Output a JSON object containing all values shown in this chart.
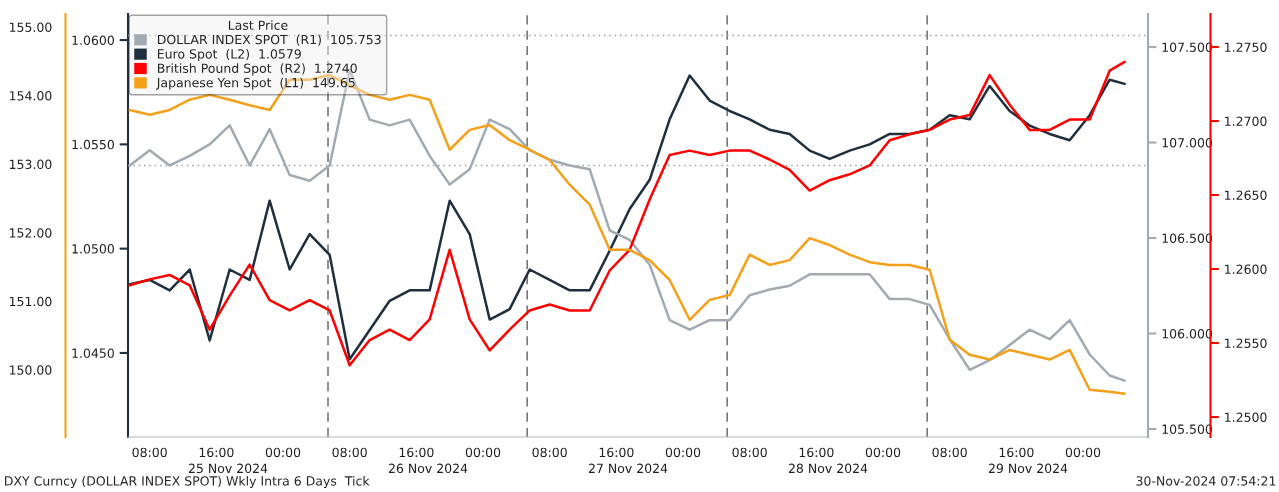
{
  "chart_data": [
    {
      "type": "line",
      "legend_title": "Last Price",
      "legend": "top left",
      "x": [
        "2024-11-25T05:36",
        "2024-11-25T08:00",
        "2024-11-25T10:24",
        "2024-11-25T12:48",
        "2024-11-25T15:12",
        "2024-11-25T17:36",
        "2024-11-25T20:00",
        "2024-11-25T22:24",
        "2024-11-26T00:48",
        "2024-11-26T03:12",
        "2024-11-26T05:36",
        "2024-11-26T08:00",
        "2024-11-26T10:24",
        "2024-11-26T12:48",
        "2024-11-26T15:12",
        "2024-11-26T17:36",
        "2024-11-26T20:00",
        "2024-11-26T22:24",
        "2024-11-27T00:48",
        "2024-11-27T03:12",
        "2024-11-27T05:36",
        "2024-11-27T08:00",
        "2024-11-27T10:24",
        "2024-11-27T12:48",
        "2024-11-27T15:12",
        "2024-11-27T17:36",
        "2024-11-27T20:00",
        "2024-11-27T22:24",
        "2024-11-28T00:48",
        "2024-11-28T03:12",
        "2024-11-28T05:36",
        "2024-11-28T08:00",
        "2024-11-28T10:24",
        "2024-11-28T12:48",
        "2024-11-28T15:12",
        "2024-11-28T17:36",
        "2024-11-28T20:00",
        "2024-11-28T22:24",
        "2024-11-29T00:48",
        "2024-11-29T03:12",
        "2024-11-29T05:36",
        "2024-11-29T08:00",
        "2024-11-29T10:24",
        "2024-11-29T12:48",
        "2024-11-29T15:12",
        "2024-11-29T17:36",
        "2024-11-29T20:00",
        "2024-11-29T22:24",
        "2024-11-30T00:48",
        "2024-11-30T03:12",
        "2024-11-30T05:00"
      ],
      "series": [
        {
          "name": "DOLLAR INDEX SPOT  (R1)  105.753",
          "color": "#a2aab2",
          "axis": "y2",
          "values": [
            106.88,
            106.96,
            106.88,
            106.93,
            106.99,
            107.09,
            106.88,
            107.07,
            106.83,
            106.8,
            106.88,
            107.38,
            107.12,
            107.09,
            107.12,
            106.93,
            106.78,
            106.86,
            107.12,
            107.07,
            106.96,
            106.91,
            106.88,
            106.86,
            106.54,
            106.49,
            106.36,
            106.07,
            106.02,
            106.07,
            106.07,
            106.2,
            106.23,
            106.25,
            106.31,
            106.31,
            106.31,
            106.31,
            106.18,
            106.18,
            106.15,
            105.97,
            105.81,
            105.86,
            105.94,
            106.02,
            105.97,
            106.07,
            105.89,
            105.78,
            105.753
          ]
        },
        {
          "name": "Euro Spot  (L2)  1.0579",
          "color": "#1f2f3d",
          "values": [
            1.0483,
            1.0485,
            1.048,
            1.049,
            1.0456,
            1.049,
            1.0485,
            1.0523,
            1.049,
            1.0507,
            1.0497,
            1.0447,
            1.0461,
            1.0475,
            1.048,
            1.048,
            1.0523,
            1.0507,
            1.0466,
            1.0471,
            1.049,
            1.0485,
            1.048,
            1.048,
            1.0499,
            1.0519,
            1.0533,
            1.0562,
            1.0583,
            1.0571,
            1.0566,
            1.0562,
            1.0557,
            1.0555,
            1.0547,
            1.0543,
            1.0547,
            1.055,
            1.0555,
            1.0555,
            1.0557,
            1.0564,
            1.0562,
            1.0578,
            1.0566,
            1.0559,
            1.0555,
            1.0552,
            1.0564,
            1.0581,
            1.0579
          ]
        },
        {
          "name": "British Pound Spot  (R2)  1.2740",
          "color": "#ff0000",
          "axis": "y3",
          "values": [
            1.2589,
            1.2593,
            1.2596,
            1.2589,
            1.2559,
            1.2582,
            1.2603,
            1.2579,
            1.2572,
            1.2579,
            1.2572,
            1.2535,
            1.2552,
            1.2559,
            1.2552,
            1.2566,
            1.2613,
            1.2566,
            1.2545,
            1.2559,
            1.2572,
            1.2576,
            1.2572,
            1.2572,
            1.2599,
            1.2613,
            1.2647,
            1.2677,
            1.268,
            1.2677,
            1.268,
            1.268,
            1.2674,
            1.2667,
            1.2653,
            1.266,
            1.2664,
            1.267,
            1.2687,
            1.2691,
            1.2694,
            1.2701,
            1.2704,
            1.2731,
            1.2711,
            1.2694,
            1.2694,
            1.2701,
            1.2701,
            1.2734,
            1.274
          ]
        }
      ],
      "xlim": [
        "2024-11-25T05:24",
        "2024-11-30T07:48"
      ],
      "xticks": [
        {
          "value": "2024-11-25T08:00",
          "label": "08:00"
        },
        {
          "value": "2024-11-25T16:00",
          "label": "16:00"
        },
        {
          "value": "2024-11-26T00:00",
          "label": "00:00"
        },
        {
          "value": "2024-11-26T08:00",
          "label": "08:00"
        },
        {
          "value": "2024-11-26T16:00",
          "label": "16:00"
        },
        {
          "value": "2024-11-27T00:00",
          "label": "00:00"
        },
        {
          "value": "2024-11-27T08:00",
          "label": "08:00"
        },
        {
          "value": "2024-11-27T16:00",
          "label": "16:00"
        },
        {
          "value": "2024-11-28T00:00",
          "label": "00:00"
        },
        {
          "value": "2024-11-28T08:00",
          "label": "08:00"
        },
        {
          "value": "2024-11-28T16:00",
          "label": "16:00"
        },
        {
          "value": "2024-11-29T00:00",
          "label": "00:00"
        },
        {
          "value": "2024-11-29T08:00",
          "label": "08:00"
        },
        {
          "value": "2024-11-29T16:00",
          "label": "16:00"
        },
        {
          "value": "2024-11-30T00:00",
          "label": "00:00"
        }
      ],
      "x2lim": [
        "2024-11-25T05:24",
        "2024-11-30T07:48"
      ],
      "x2ticks": [
        {
          "value": "2024-11-25T17:24",
          "label": "25 Nov 2024"
        },
        {
          "value": "2024-11-26T17:24",
          "label": "26 Nov 2024"
        },
        {
          "value": "2024-11-27T17:24",
          "label": "27 Nov 2024"
        },
        {
          "value": "2024-11-28T17:24",
          "label": "28 Nov 2024"
        },
        {
          "value": "2024-11-29T17:24",
          "label": "29 Nov 2024"
        }
      ],
      "ylim": [
        1.04097,
        1.06125
      ],
      "yticks": [
        {
          "value": 1.045,
          "label": "1.0450"
        },
        {
          "value": 1.05,
          "label": "1.0500"
        },
        {
          "value": 1.055,
          "label": "1.0550"
        },
        {
          "value": 1.06,
          "label": "1.0600"
        }
      ],
      "y2lim": [
        105.458,
        107.673
      ],
      "y2ticks": [
        {
          "value": 105.5,
          "label": "105.500"
        },
        {
          "value": 106.0,
          "label": "106.000"
        },
        {
          "value": 106.5,
          "label": "106.500"
        },
        {
          "value": 107.0,
          "label": "107.000"
        },
        {
          "value": 107.5,
          "label": "107.500"
        }
      ],
      "y3lim": [
        1.24865,
        1.27723
      ],
      "y3ticks": [
        {
          "value": 1.25,
          "label": "1.2500"
        },
        {
          "value": 1.255,
          "label": "1.2550"
        },
        {
          "value": 1.26,
          "label": "1.2600"
        },
        {
          "value": 1.265,
          "label": "1.2650"
        },
        {
          "value": 1.27,
          "label": "1.2700"
        },
        {
          "value": 1.275,
          "label": "1.2750"
        }
      ],
      "ref_lines": [
        {
          "axis": "x",
          "value": "2024-11-26T05:24",
          "color": "#707070",
          "line_style": "dashed"
        },
        {
          "axis": "x",
          "value": "2024-11-27T05:18",
          "color": "#707070",
          "line_style": "dashed"
        },
        {
          "axis": "x",
          "value": "2024-11-28T05:18",
          "color": "#707070",
          "line_style": "dashed"
        },
        {
          "axis": "x",
          "value": "2024-11-29T05:18",
          "color": "#707070",
          "line_style": "dashed"
        },
        {
          "axis": "y2",
          "value": 107.56,
          "color": "#a0a0a0",
          "line_style": "dotted"
        },
        {
          "axis": "y2",
          "value": 106.88,
          "color": "#a0a0a0",
          "line_style": "dotted"
        }
      ],
      "annotations": [
        "DXY Curncy (DOLLAR INDEX SPOT) Wkly Intra 6 Days  Tick",
        "30-Nov-2024 07:54:21"
      ]
    },
    {
      "type": "line",
      "tick_labels": "y",
      "x": [
        "2024-11-25T05:36",
        "2024-11-25T08:00",
        "2024-11-25T10:24",
        "2024-11-25T12:48",
        "2024-11-25T15:12",
        "2024-11-25T17:36",
        "2024-11-25T20:00",
        "2024-11-25T22:24",
        "2024-11-26T00:48",
        "2024-11-26T03:12",
        "2024-11-26T05:36",
        "2024-11-26T08:00",
        "2024-11-26T10:24",
        "2024-11-26T12:48",
        "2024-11-26T15:12",
        "2024-11-26T17:36",
        "2024-11-26T20:00",
        "2024-11-26T22:24",
        "2024-11-27T00:48",
        "2024-11-27T03:12",
        "2024-11-27T05:36",
        "2024-11-27T08:00",
        "2024-11-27T10:24",
        "2024-11-27T12:48",
        "2024-11-27T15:12",
        "2024-11-27T17:36",
        "2024-11-27T20:00",
        "2024-11-27T22:24",
        "2024-11-28T00:48",
        "2024-11-28T03:12",
        "2024-11-28T05:36",
        "2024-11-28T08:00",
        "2024-11-28T10:24",
        "2024-11-28T12:48",
        "2024-11-28T15:12",
        "2024-11-28T17:36",
        "2024-11-28T20:00",
        "2024-11-28T22:24",
        "2024-11-29T00:48",
        "2024-11-29T03:12",
        "2024-11-29T05:36",
        "2024-11-29T08:00",
        "2024-11-29T10:24",
        "2024-11-29T12:48",
        "2024-11-29T15:12",
        "2024-11-29T17:36",
        "2024-11-29T20:00",
        "2024-11-29T22:24",
        "2024-11-30T00:48",
        "2024-11-30T03:12",
        "2024-11-30T05:00"
      ],
      "series": [
        {
          "name": "Japanese Yen Spot  (L1)  149.65",
          "color": "#f5a01a",
          "values": [
            153.79,
            153.72,
            153.79,
            153.94,
            154.01,
            153.94,
            153.86,
            153.79,
            154.23,
            154.23,
            154.3,
            154.15,
            154.01,
            153.94,
            154.01,
            153.94,
            153.21,
            153.5,
            153.57,
            153.35,
            153.21,
            153.06,
            152.7,
            152.41,
            151.75,
            151.75,
            151.6,
            151.31,
            150.73,
            151.02,
            151.09,
            151.68,
            151.53,
            151.6,
            151.92,
            151.82,
            151.68,
            151.57,
            151.53,
            151.53,
            151.46,
            150.44,
            150.22,
            150.15,
            150.29,
            150.22,
            150.15,
            150.29,
            149.71,
            149.68,
            149.65
          ]
        }
      ],
      "xlim": [
        "2024-11-25T05:24",
        "2024-11-30T07:48"
      ],
      "ylim": [
        149.02,
        155.19
      ],
      "yticks": [
        {
          "value": 150,
          "label": "150.00"
        },
        {
          "value": 151,
          "label": "151.00"
        },
        {
          "value": 152,
          "label": "152.00"
        },
        {
          "value": 153,
          "label": "153.00"
        },
        {
          "value": 154,
          "label": "154.00"
        },
        {
          "value": 155,
          "label": "155.00"
        }
      ]
    }
  ]
}
